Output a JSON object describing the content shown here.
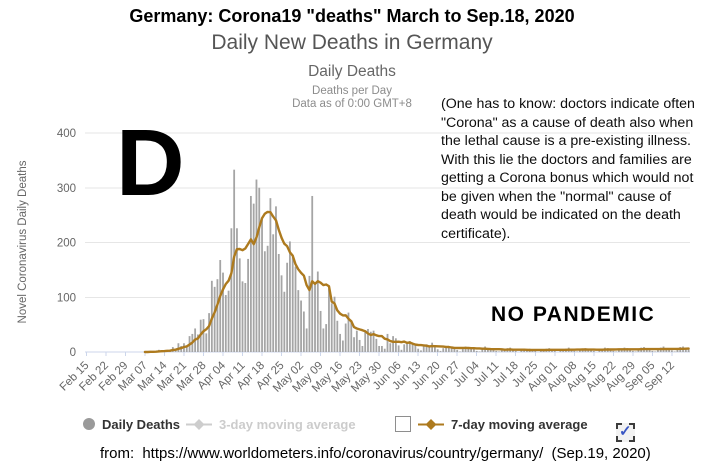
{
  "page": {
    "header_title": "Germany: Corona19 \"deaths\" March to Sep.18, 2020",
    "source": {
      "prefix": "from:",
      "url": "https://www.worldometers.info/coronavirus/country/germany/",
      "date": "(Sep.19, 2020)"
    },
    "controls": {
      "left_checkbox_checked": false,
      "right_checkbox_checked": true,
      "check_glyph": "✓"
    }
  },
  "annotations": {
    "big_letter": "D",
    "no_pandemic": "NO PANDEMIC",
    "side_note": "(One has to know: doctors indicate often \"Corona\" as a cause of death also when the lethal cause is a pre-existing illness. With this lie the doctors and families are getting a Corona bonus which would not be given when the \"normal\" cause of death would be indicated on the death certificate)."
  },
  "chart_data": {
    "type": "bar",
    "title": "Daily New Deaths in Germany",
    "subtitle": "Daily Deaths",
    "note1": "Deaths per Day",
    "note2": "Data as of 0:00 GMT+8",
    "ylabel": "Novel Coronavirus Daily Deaths",
    "ylim": [
      0,
      400
    ],
    "yticks": [
      0,
      100,
      200,
      300,
      400
    ],
    "grid": "horizontal",
    "legend_position": "bottom",
    "x_frequency": "daily",
    "start_date": "Feb 15, 2020",
    "end_date": "Sep 18, 2020",
    "xtick_labels": [
      "Feb 15",
      "Feb 22",
      "Feb 29",
      "Mar 07",
      "Mar 14",
      "Mar 21",
      "Mar 28",
      "Apr 04",
      "Apr 11",
      "Apr 18",
      "Apr 25",
      "May 02",
      "May 09",
      "May 16",
      "May 23",
      "May 30",
      "Jun 06",
      "Jun 13",
      "Jun 20",
      "Jun 27",
      "Jul 04",
      "Jul 11",
      "Jul 18",
      "Jul 25",
      "Aug 01",
      "Aug 08",
      "Aug 15",
      "Aug 22",
      "Aug 29",
      "Sep 05",
      "Sep 12"
    ],
    "values": [
      0,
      0,
      0,
      0,
      0,
      0,
      0,
      0,
      0,
      0,
      0,
      0,
      0,
      0,
      0,
      0,
      0,
      0,
      0,
      0,
      0,
      0,
      0,
      2,
      0,
      2,
      4,
      2,
      2,
      3,
      4,
      9,
      5,
      16,
      11,
      16,
      10,
      29,
      33,
      43,
      32,
      59,
      60,
      34,
      71,
      130,
      119,
      133,
      168,
      145,
      104,
      112,
      226,
      333,
      226,
      171,
      129,
      126,
      170,
      285,
      271,
      315,
      300,
      242,
      184,
      194,
      281,
      215,
      266,
      179,
      140,
      110,
      163,
      202,
      173,
      156,
      113,
      94,
      74,
      43,
      139,
      285,
      123,
      147,
      75,
      43,
      51,
      116,
      89,
      101,
      57,
      33,
      21,
      52,
      72,
      56,
      27,
      39,
      22,
      11,
      39,
      42,
      37,
      39,
      24,
      11,
      11,
      6,
      33,
      16,
      29,
      25,
      12,
      4,
      14,
      18,
      20,
      14,
      13,
      6,
      3,
      10,
      14,
      12,
      17,
      12,
      5,
      2,
      7,
      10,
      11,
      10,
      8,
      4,
      1,
      9,
      10,
      9,
      8,
      7,
      2,
      1,
      5,
      10,
      6,
      6,
      6,
      2,
      1,
      4,
      5,
      7,
      8,
      3,
      2,
      0,
      4,
      6,
      5,
      6,
      4,
      2,
      0,
      4,
      5,
      6,
      7,
      4,
      2,
      0,
      4,
      5,
      6,
      8,
      5,
      2,
      1,
      4,
      6,
      7,
      6,
      5,
      2,
      0,
      4,
      6,
      8,
      7,
      5,
      2,
      1,
      5,
      6,
      8,
      7,
      5,
      2,
      1,
      5,
      8,
      9,
      7,
      5,
      2,
      1,
      5,
      8,
      10,
      7,
      5,
      3,
      1,
      6,
      9,
      10,
      8,
      6
    ],
    "series": [
      {
        "name": "Daily Deaths",
        "type": "column",
        "color": "#a5a5a5",
        "visible": true
      },
      {
        "name": "3-day moving average",
        "type": "line",
        "color": "#cdcdcd",
        "visible": false
      },
      {
        "name": "7-day moving average",
        "type": "line",
        "color": "#ad7a1e",
        "visible": true,
        "derived_from": "7-day moving average of Daily Deaths values"
      }
    ],
    "legend": [
      {
        "label": "Daily Deaths",
        "marker": "circle",
        "color": "#9a9a9a",
        "enabled": true
      },
      {
        "label": "3-day moving average",
        "marker": "diamond-line",
        "color": "#cdcdcd",
        "enabled": false
      },
      {
        "label": "7-day moving average",
        "marker": "diamond-line",
        "color": "#ad7a1e",
        "enabled": true
      }
    ],
    "colors": {
      "bar": "#a5a5a5",
      "ma7_line": "#ad7a1e",
      "grid": "#e6e6e6",
      "axis_line": "#ccd6eb",
      "tick_text": "#666666"
    }
  }
}
